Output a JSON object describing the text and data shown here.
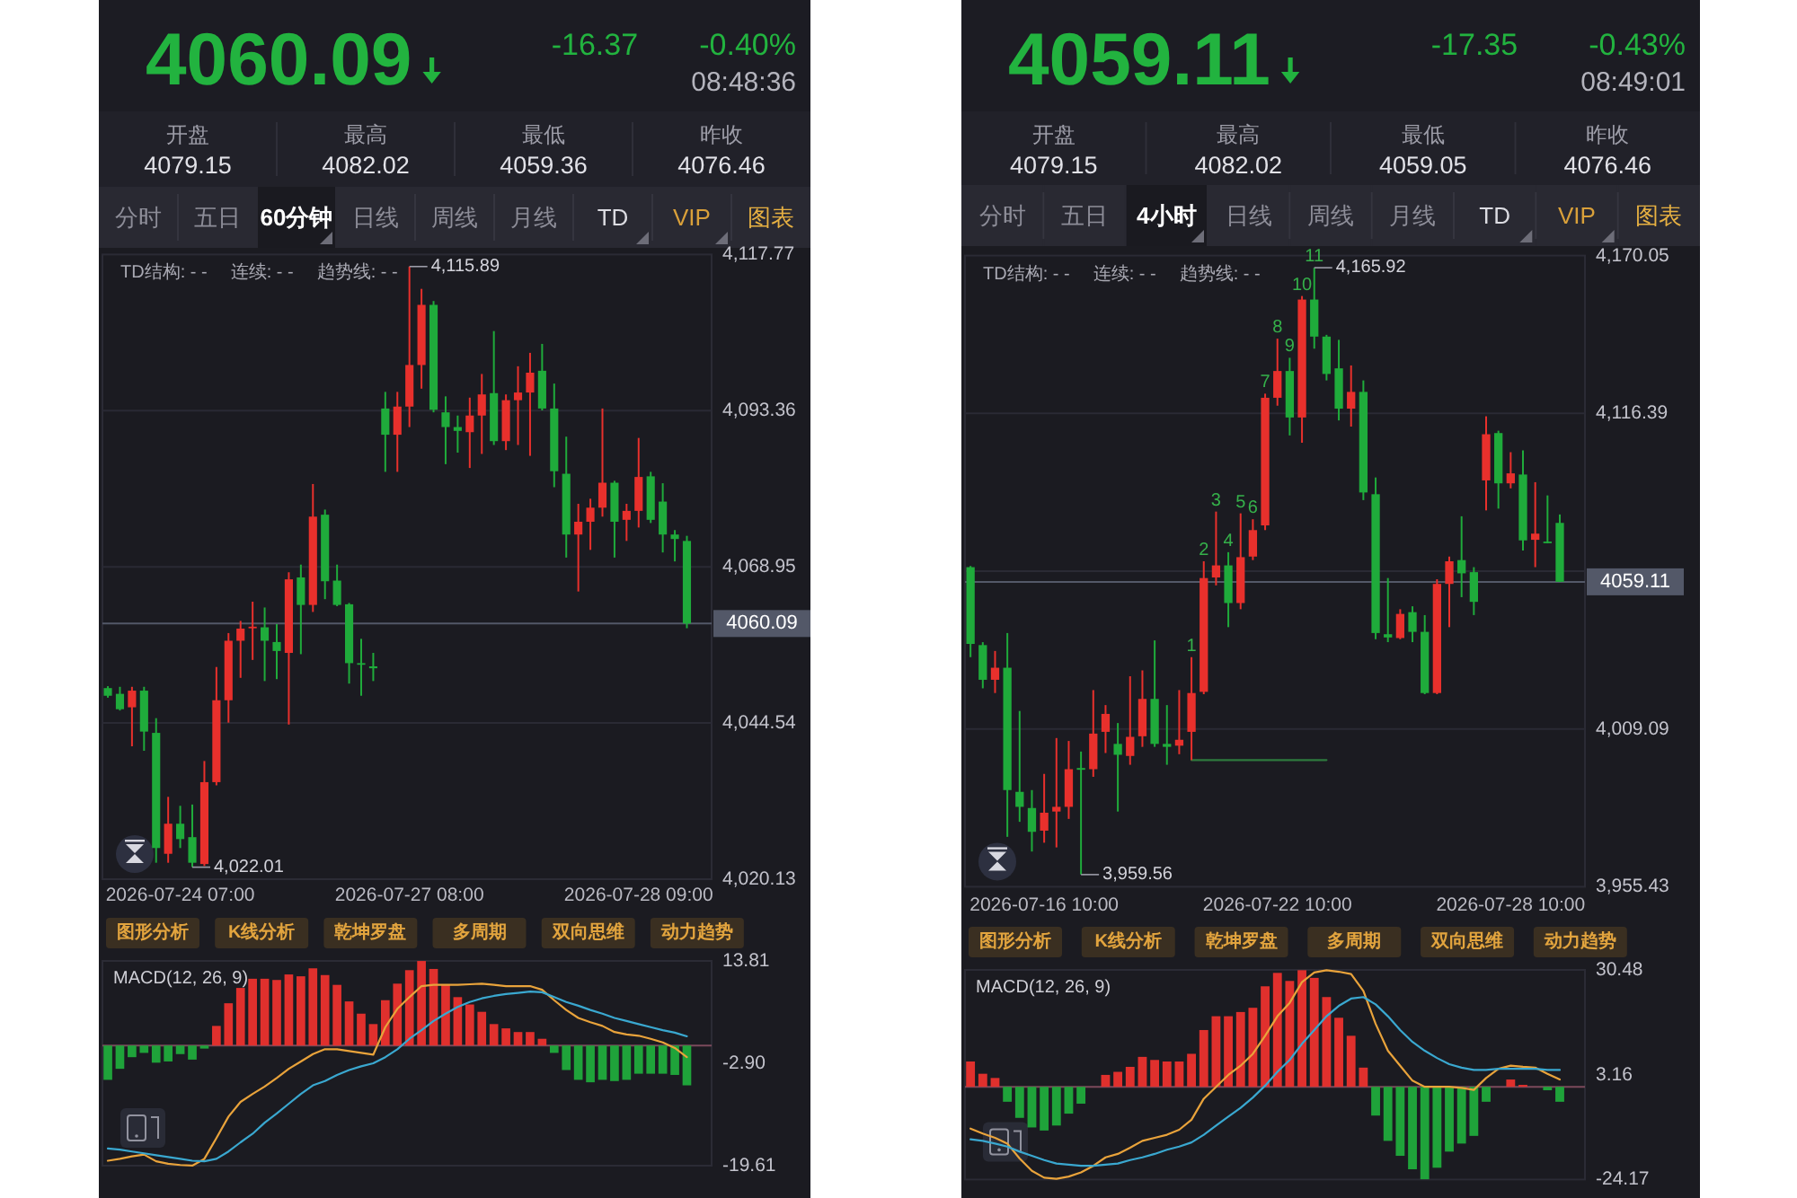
{
  "chart_data": [
    {
      "type": "other",
      "title": "4060.09",
      "color": "#22b33f",
      "annotations": [
        "-16.37",
        "-0.40%",
        "08:48:36",
        "开盘",
        "4079.15",
        "最高",
        "4082.02",
        "最低",
        "4059.36",
        "昨收",
        "4076.46"
      ]
    },
    {
      "type": "other",
      "annotations": [
        "分时",
        "五日",
        "60分钟",
        "日线",
        "周线",
        "月线",
        "TD",
        "VIP",
        "图表"
      ]
    },
    {
      "type": "candlestick",
      "categories": [
        null,
        null,
        null,
        null,
        null,
        null,
        "2026-07-24 07:00",
        null,
        null,
        null,
        null,
        null,
        null,
        null,
        null,
        null,
        null,
        null,
        null,
        null,
        null,
        null,
        null,
        null,
        null,
        "2026-07-27 08:00",
        null,
        null,
        null,
        null,
        null,
        null,
        null,
        null,
        null,
        null,
        null,
        null,
        null,
        null,
        null,
        null,
        null,
        null,
        "2026-07-28 09:00",
        null,
        null,
        null,
        null
      ],
      "ohlc": [
        [
          4050.0,
          4050.3,
          4048.5,
          4048.8
        ],
        [
          4049.1,
          4050.2,
          4046.5,
          4046.7
        ],
        [
          4047.0,
          4050.2,
          4040.9,
          4049.6
        ],
        [
          4049.6,
          4050.2,
          4040.2,
          4043.2
        ],
        [
          4043.0,
          4045.3,
          4022.7,
          4025.0
        ],
        [
          4024.1,
          4033.0,
          4022.7,
          4028.8
        ],
        [
          4028.8,
          4031.6,
          4025.0,
          4026.4
        ],
        [
          4026.7,
          4031.8,
          4022.01,
          4022.7
        ],
        [
          4022.5,
          4038.6,
          4022.2,
          4035.3
        ],
        [
          4035.3,
          4053.3,
          4034.8,
          4048.1
        ],
        [
          4048.1,
          4058.6,
          4044.6,
          4057.4
        ],
        [
          4057.4,
          4060.5,
          4051.6,
          4059.3
        ],
        [
          4059.4,
          4063.5,
          4054.4,
          4059.6
        ],
        [
          4059.5,
          4062.6,
          4051.1,
          4057.4
        ],
        [
          4057.2,
          4060.0,
          4051.4,
          4055.8
        ],
        [
          4055.5,
          4068.1,
          4044.3,
          4067.0
        ],
        [
          4067.3,
          4069.3,
          4055.3,
          4063.0
        ],
        [
          4063.0,
          4081.9,
          4061.9,
          4076.8
        ],
        [
          4077.1,
          4077.9,
          4063.9,
          4066.7
        ],
        [
          4066.8,
          4069.3,
          4062.8,
          4063.0
        ],
        [
          4063.1,
          4063.3,
          4050.7,
          4053.9
        ],
        [
          4053.9,
          4057.7,
          4048.8,
          4053.7
        ],
        [
          4053.4,
          4055.5,
          4051.1,
          4053.1
        ],
        [
          4093.7,
          4096.3,
          4083.8,
          4089.6
        ],
        [
          4089.6,
          4096.3,
          4083.8,
          4094.0
        ],
        [
          4094.0,
          4115.89,
          4090.8,
          4100.5
        ],
        [
          4100.5,
          4112.4,
          4096.8,
          4109.9
        ],
        [
          4109.9,
          4110.5,
          4093.1,
          4093.5
        ],
        [
          4093.1,
          4095.6,
          4085.0,
          4090.8
        ],
        [
          4090.8,
          4092.6,
          4086.8,
          4090.2
        ],
        [
          4090.0,
          4095.4,
          4084.4,
          4092.6
        ],
        [
          4092.6,
          4099.1,
          4086.6,
          4095.9
        ],
        [
          4096.1,
          4105.8,
          4088.0,
          4088.6
        ],
        [
          4088.6,
          4095.9,
          4087.2,
          4095.0
        ],
        [
          4095.0,
          4100.3,
          4088.0,
          4096.2
        ],
        [
          4096.2,
          4102.4,
          4086.3,
          4099.3
        ],
        [
          4099.6,
          4103.8,
          4093.4,
          4093.7
        ],
        [
          4093.7,
          4097.6,
          4081.4,
          4083.9
        ],
        [
          4083.5,
          4089.3,
          4070.4,
          4074.0
        ],
        [
          4074.0,
          4078.8,
          4065.1,
          4076.0
        ],
        [
          4076.0,
          4079.6,
          4071.6,
          4078.2
        ],
        [
          4078.2,
          4093.7,
          4076.8,
          4082.1
        ],
        [
          4082.1,
          4082.4,
          4070.4,
          4076.0
        ],
        [
          4076.3,
          4078.8,
          4073.0,
          4077.7
        ],
        [
          4077.7,
          4089.1,
          4075.1,
          4083.0
        ],
        [
          4083.1,
          4083.8,
          4075.8,
          4076.3
        ],
        [
          4079.15,
          4082.02,
          4071.2,
          4074.0
        ],
        [
          4074.0,
          4074.7,
          4069.8,
          4073.3
        ],
        [
          4073.0,
          4073.8,
          4059.36,
          4060.09
        ]
      ],
      "colors": [
        "#1fab3b",
        "#1fab3b",
        "#e8302c",
        "#1fab3b",
        "#1fab3b",
        "#e8302c",
        "#1fab3b",
        "#1fab3b",
        "#e8302c",
        "#e8302c",
        "#e8302c",
        "#e8302c",
        "#e8302c",
        "#1fab3b",
        "#1fab3b",
        "#e8302c",
        "#1fab3b",
        "#e8302c",
        "#1fab3b",
        "#1fab3b",
        "#1fab3b",
        "#1fab3b",
        "#1fab3b",
        "#1fab3b",
        "#e8302c",
        "#e8302c",
        "#e8302c",
        "#1fab3b",
        "#1fab3b",
        "#1fab3b",
        "#e8302c",
        "#e8302c",
        "#1fab3b",
        "#e8302c",
        "#e8302c",
        "#e8302c",
        "#1fab3b",
        "#1fab3b",
        "#1fab3b",
        "#e8302c",
        "#e8302c",
        "#e8302c",
        "#1fab3b",
        "#e8302c",
        "#e8302c",
        "#1fab3b",
        "#1fab3b",
        "#1fab3b",
        "#1fab3b"
      ],
      "ylim": [
        4020.13,
        4117.77
      ],
      "yticks": [
        {
          "value": 4117.77,
          "label": "4,117.77"
        },
        {
          "value": 4093.36,
          "label": "4,093.36"
        },
        {
          "value": 4068.95,
          "label": "4,068.95"
        },
        {
          "value": 4044.54,
          "label": "4,044.54"
        },
        {
          "value": 4020.13,
          "label": "4,020.13"
        }
      ],
      "grid": "y",
      "annotations": [
        "TD结构: - -",
        "连续: - -",
        "趋势线: - -",
        "4,115.89",
        "4,022.01"
      ],
      "ref_lines": [
        {
          "axis": "y",
          "value": 4060.09,
          "label": "4060.09",
          "color": "#535868"
        }
      ]
    },
    {
      "type": "other",
      "annotations": [
        "图形分析",
        "K线分析",
        "乾坤罗盘",
        "多周期",
        "双向思维",
        "动力趋势"
      ]
    },
    {
      "type": "bar",
      "title": "MACD(12, 26, 9)",
      "categories": [
        null,
        null,
        null,
        null,
        null,
        null,
        null,
        null,
        null,
        null,
        null,
        null,
        null,
        null,
        null,
        null,
        null,
        null,
        null,
        null,
        null,
        null,
        null,
        null,
        null,
        null,
        null,
        null,
        null,
        null,
        null,
        null,
        null,
        null,
        null,
        null,
        null,
        null,
        null,
        null,
        null,
        null,
        null,
        null,
        null,
        null,
        null,
        null,
        null
      ],
      "series": [
        {
          "type": "bar",
          "colors": [
            "#1fa33a",
            "#1fa33a",
            "#1fa33a",
            "#1fa33a",
            "#1fa33a",
            "#1fa33a",
            "#1fa33a",
            "#1fa33a",
            "#1fa33a",
            "#e0302d",
            "#e0302d",
            "#e0302d",
            "#e0302d",
            "#e0302d",
            "#e0302d",
            "#e0302d",
            "#e0302d",
            "#e0302d",
            "#e0302d",
            "#e0302d",
            "#e0302d",
            "#e0302d",
            "#e0302d",
            "#e0302d",
            "#e0302d",
            "#e0302d",
            "#e0302d",
            "#e0302d",
            "#e0302d",
            "#e0302d",
            "#e0302d",
            "#e0302d",
            "#e0302d",
            "#e0302d",
            "#e0302d",
            "#e0302d",
            "#e0302d",
            "#1fa33a",
            "#1fa33a",
            "#1fa33a",
            "#1fa33a",
            "#1fa33a",
            "#1fa33a",
            "#1fa33a",
            "#1fa33a",
            "#1fa33a",
            "#1fa33a",
            "#1fa33a",
            "#1fa33a"
          ],
          "values": [
            -5.6,
            -3.8,
            -1.9,
            -1.2,
            -2.8,
            -2.6,
            -1.4,
            -2.3,
            -0.5,
            3.2,
            6.9,
            9.4,
            10.9,
            10.9,
            10.7,
            11.6,
            11.3,
            12.6,
            11.5,
            9.9,
            7.2,
            5.2,
            3.5,
            7.4,
            10.1,
            12.3,
            13.8,
            12.5,
            9.9,
            7.9,
            6.7,
            5.5,
            3.5,
            2.8,
            2.2,
            2.2,
            1.1,
            -1.2,
            -4.0,
            -5.6,
            -6.0,
            -5.6,
            -5.8,
            -5.6,
            -4.6,
            -4.6,
            -4.6,
            -4.8,
            -6.5
          ]
        },
        {
          "type": "line",
          "color": "#e9a33b",
          "values": [
            -18.8,
            -18.5,
            -18.1,
            -17.8,
            -18.9,
            -19.3,
            -19.5,
            -19.6,
            -18.5,
            -15.1,
            -11.6,
            -9.2,
            -7.9,
            -6.7,
            -5.3,
            -3.8,
            -2.6,
            -1.4,
            -0.6,
            -0.6,
            -0.9,
            -1.2,
            -1.5,
            3.0,
            6.0,
            7.9,
            9.7,
            9.9,
            9.9,
            9.9,
            10.0,
            10.1,
            9.9,
            9.7,
            9.7,
            9.7,
            9.1,
            7.4,
            5.8,
            4.5,
            3.8,
            3.2,
            2.2,
            1.8,
            1.6,
            1.1,
            0.5,
            -0.4,
            -1.9
          ]
        },
        {
          "type": "line",
          "color": "#3aa8d0",
          "values": [
            -16.8,
            -17.0,
            -17.3,
            -17.6,
            -17.9,
            -18.2,
            -18.5,
            -18.8,
            -18.9,
            -18.5,
            -17.3,
            -15.8,
            -14.4,
            -12.6,
            -11.1,
            -9.5,
            -7.9,
            -6.5,
            -5.8,
            -4.8,
            -4.0,
            -3.4,
            -2.9,
            -1.9,
            -0.6,
            1.1,
            2.5,
            4.0,
            5.2,
            6.3,
            7.1,
            7.7,
            8.1,
            8.4,
            8.6,
            8.8,
            8.7,
            7.9,
            7.1,
            6.5,
            5.8,
            5.2,
            4.5,
            4.0,
            3.5,
            3.0,
            2.5,
            2.1,
            1.5
          ]
        }
      ],
      "ylim": [
        -19.61,
        13.81
      ],
      "yticks": [
        13.81,
        {
          "value": -2.9,
          "label": "-2.90"
        },
        -19.61
      ],
      "tick_labels": "y",
      "ref_lines": [
        {
          "axis": "y",
          "value": 0,
          "color": "#7b4a5b"
        }
      ]
    },
    {
      "type": "other",
      "title": "4059.11",
      "color": "#22b33f",
      "annotations": [
        "-17.35",
        "-0.43%",
        "08:49:01",
        "开盘",
        "4079.15",
        "最高",
        "4082.02",
        "最低",
        "4059.05",
        "昨收",
        "4076.46"
      ]
    },
    {
      "type": "other",
      "annotations": [
        "分时",
        "五日",
        "4小时",
        "日线",
        "周线",
        "月线",
        "TD",
        "VIP",
        "图表"
      ]
    },
    {
      "type": "candlestick",
      "categories": [
        null,
        null,
        null,
        null,
        null,
        null,
        "2026-07-16 10:00",
        null,
        null,
        null,
        null,
        null,
        null,
        null,
        null,
        null,
        null,
        null,
        null,
        null,
        null,
        null,
        null,
        null,
        null,
        "2026-07-22 10:00",
        null,
        null,
        null,
        null,
        null,
        null,
        null,
        null,
        null,
        null,
        null,
        null,
        null,
        null,
        null,
        null,
        null,
        null,
        "2026-07-28 10:00",
        null,
        null,
        null,
        null
      ],
      "ohlc": [
        [
          4064.1,
          4064.5,
          4033.5,
          4038.0
        ],
        [
          4037.6,
          4038.6,
          4022.9,
          4025.8
        ],
        [
          4025.8,
          4035.6,
          4021.3,
          4029.9
        ],
        [
          4029.9,
          4041.7,
          3972.4,
          3988.3
        ],
        [
          3987.7,
          4015.2,
          3977.5,
          3982.6
        ],
        [
          3982.2,
          3988.3,
          3967.4,
          3974.1
        ],
        [
          3974.5,
          3993.8,
          3970.4,
          3980.6
        ],
        [
          3981.0,
          4006.0,
          3968.8,
          3982.6
        ],
        [
          3982.6,
          4005.0,
          3978.5,
          3995.4
        ],
        [
          3995.8,
          4001.4,
          3959.56,
          3995.2
        ],
        [
          3995.4,
          4022.3,
          3992.8,
          4007.5
        ],
        [
          4008.1,
          4017.2,
          4000.9,
          4014.2
        ],
        [
          4004.0,
          4011.1,
          3981.0,
          4000.3
        ],
        [
          3999.9,
          4027.0,
          3996.9,
          4006.4
        ],
        [
          4006.6,
          4029.0,
          4003.0,
          4019.3
        ],
        [
          4019.3,
          4039.2,
          4003.0,
          4004.0
        ],
        [
          4004.0,
          4017.2,
          3996.9,
          4003.0
        ],
        [
          4003.4,
          4022.3,
          4000.5,
          4005.4
        ],
        [
          4008.1,
          4033.5,
          3998.5,
          4021.3
        ],
        [
          4021.7,
          4066.1,
          4020.9,
          4060.4
        ],
        [
          4060.6,
          4083.0,
          4057.9,
          4064.7
        ],
        [
          4064.7,
          4069.2,
          4043.7,
          4051.9
        ],
        [
          4051.9,
          4082.4,
          4049.8,
          4067.5
        ],
        [
          4067.7,
          4080.4,
          4066.5,
          4076.7
        ],
        [
          4078.3,
          4123.1,
          4076.7,
          4121.7
        ],
        [
          4121.7,
          4141.8,
          4119.0,
          4130.8
        ],
        [
          4130.8,
          4135.3,
          4108.9,
          4115.0
        ],
        [
          4115.0,
          4156.3,
          4106.4,
          4155.1
        ],
        [
          4155.1,
          4165.92,
          4138.4,
          4142.5
        ],
        [
          4142.5,
          4143.1,
          4127.6,
          4129.8
        ],
        [
          4131.7,
          4141.4,
          4114.0,
          4118.0
        ],
        [
          4118.0,
          4132.7,
          4111.9,
          4123.7
        ],
        [
          4123.7,
          4127.6,
          4086.9,
          4089.5
        ],
        [
          4088.9,
          4094.6,
          4039.6,
          4041.7
        ],
        [
          4041.3,
          4060.4,
          4038.6,
          4040.2
        ],
        [
          4040.0,
          4049.8,
          4039.6,
          4048.2
        ],
        [
          4048.8,
          4050.8,
          4038.6,
          4042.1
        ],
        [
          4042.1,
          4047.8,
          4020.9,
          4021.3
        ],
        [
          4021.3,
          4060.0,
          4020.9,
          4058.4
        ],
        [
          4058.4,
          4067.7,
          4043.7,
          4066.1
        ],
        [
          4066.5,
          4081.4,
          4053.9,
          4062.0
        ],
        [
          4062.4,
          4064.1,
          4047.8,
          4052.3
        ],
        [
          4093.6,
          4115.4,
          4083.4,
          4109.3
        ],
        [
          4109.7,
          4110.5,
          4084.0,
          4092.6
        ],
        [
          4092.6,
          4103.2,
          4090.9,
          4096.0
        ],
        [
          4095.6,
          4103.8,
          4069.8,
          4073.2
        ],
        [
          4073.4,
          4093.0,
          4064.1,
          4075.5
        ],
        [
          4072.8,
          4088.5,
          4072.2,
          4072.4
        ],
        [
          4079.15,
          4082.02,
          4059.05,
          4059.11
        ]
      ],
      "colors": [
        "#1fab3b",
        "#1fab3b",
        "#e8302c",
        "#1fab3b",
        "#1fab3b",
        "#1fab3b",
        "#e8302c",
        "#e8302c",
        "#e8302c",
        "#1fab3b",
        "#e8302c",
        "#e8302c",
        "#1fab3b",
        "#e8302c",
        "#e8302c",
        "#1fab3b",
        "#1fab3b",
        "#e8302c",
        "#e8302c",
        "#e8302c",
        "#e8302c",
        "#1fab3b",
        "#e8302c",
        "#e8302c",
        "#e8302c",
        "#e8302c",
        "#1fab3b",
        "#e8302c",
        "#1fab3b",
        "#1fab3b",
        "#1fab3b",
        "#e8302c",
        "#1fab3b",
        "#1fab3b",
        "#1fab3b",
        "#e8302c",
        "#1fab3b",
        "#1fab3b",
        "#e8302c",
        "#e8302c",
        "#1fab3b",
        "#1fab3b",
        "#e8302c",
        "#1fab3b",
        "#e8302c",
        "#1fab3b",
        "#e8302c",
        "#1fab3b",
        "#1fab3b"
      ],
      "value_labels": [
        null,
        null,
        null,
        null,
        null,
        null,
        null,
        null,
        null,
        null,
        null,
        null,
        null,
        null,
        null,
        null,
        null,
        null,
        "1",
        "2",
        "3",
        "4",
        "5",
        "6",
        "7",
        "8",
        "9",
        "10",
        "11",
        null,
        null,
        null,
        null,
        null,
        null,
        null,
        null,
        null,
        null,
        null,
        null,
        null,
        null,
        null,
        null,
        null,
        null,
        null,
        null
      ],
      "series": [
        {
          "type": "line",
          "color": "#2e7a3e",
          "values": [
            null,
            null,
            null,
            null,
            null,
            null,
            null,
            null,
            null,
            null,
            null,
            null,
            null,
            null,
            null,
            null,
            null,
            null,
            3998.5,
            3998.5,
            3998.5,
            3998.5,
            3998.5,
            3998.5,
            3998.5,
            3998.5,
            3998.5,
            3998.5,
            3998.5,
            3998.5,
            null,
            null,
            null,
            null,
            null,
            null,
            null,
            null,
            null,
            null,
            null,
            null,
            null,
            null,
            null,
            null,
            null,
            null,
            null
          ]
        }
      ],
      "ylim": [
        3955.43,
        4170.05
      ],
      "yticks": [
        {
          "value": 4170.05,
          "label": "4,170.05"
        },
        {
          "value": 4116.39,
          "label": "4,116.39"
        },
        {
          "value": 4062.74,
          "label": null
        },
        {
          "value": 4009.09,
          "label": "4,009.09"
        },
        {
          "value": 3955.43,
          "label": "3,955.43"
        }
      ],
      "grid": "y",
      "annotations": [
        "TD结构: - -",
        "连续: - -",
        "趋势线: - -",
        "4,165.92",
        "3,959.56"
      ],
      "ref_lines": [
        {
          "axis": "y",
          "value": 4059.11,
          "label": "4059.11",
          "color": "#535868"
        }
      ]
    },
    {
      "type": "other",
      "annotations": [
        "图形分析",
        "K线分析",
        "乾坤罗盘",
        "多周期",
        "双向思维",
        "动力趋势"
      ]
    },
    {
      "type": "bar",
      "title": "MACD(12, 26, 9)",
      "categories": [
        null,
        null,
        null,
        null,
        null,
        null,
        null,
        null,
        null,
        null,
        null,
        null,
        null,
        null,
        null,
        null,
        null,
        null,
        null,
        null,
        null,
        null,
        null,
        null,
        null,
        null,
        null,
        null,
        null,
        null,
        null,
        null,
        null,
        null,
        null,
        null,
        null,
        null,
        null,
        null,
        null,
        null,
        null,
        null,
        null,
        null,
        null,
        null,
        null
      ],
      "series": [
        {
          "type": "bar",
          "colors": [
            "#e0302d",
            "#e0302d",
            "#e0302d",
            "#1fa33a",
            "#1fa33a",
            "#1fa33a",
            "#1fa33a",
            "#1fa33a",
            "#1fa33a",
            "#1fa33a",
            null,
            "#e0302d",
            "#e0302d",
            "#e0302d",
            "#e0302d",
            "#e0302d",
            "#e0302d",
            "#e0302d",
            "#e0302d",
            "#e0302d",
            "#e0302d",
            "#e0302d",
            "#e0302d",
            "#e0302d",
            "#e0302d",
            "#e0302d",
            "#e0302d",
            "#e0302d",
            "#e0302d",
            "#e0302d",
            "#e0302d",
            "#e0302d",
            "#e0302d",
            "#1fa33a",
            "#1fa33a",
            "#1fa33a",
            "#1fa33a",
            "#1fa33a",
            "#1fa33a",
            "#1fa33a",
            "#1fa33a",
            "#1fa33a",
            "#1fa33a",
            null,
            "#e0302d",
            "#e0302d",
            null,
            "#1fa33a",
            "#1fa33a"
          ],
          "values": [
            6.6,
            3.4,
            2.3,
            -3.9,
            -8.1,
            -10.6,
            -11.4,
            -10.1,
            -7.0,
            -4.4,
            null,
            3.1,
            3.9,
            5.2,
            7.8,
            7.0,
            6.6,
            6.6,
            8.6,
            14.8,
            18.4,
            18.4,
            19.5,
            20.6,
            26.2,
            29.7,
            27.6,
            30.4,
            28.4,
            23.4,
            18.0,
            13.3,
            5.0,
            -7.5,
            -14.1,
            -18.0,
            -21.5,
            -24.1,
            -21.1,
            -16.9,
            -14.8,
            -12.8,
            -3.9,
            null,
            1.9,
            0.5,
            null,
            -0.9,
            -3.9
          ]
        },
        {
          "type": "line",
          "color": "#e9a33b",
          "values": [
            -10.9,
            -12.2,
            -13.3,
            -14.8,
            -18.7,
            -21.9,
            -23.7,
            -24.0,
            -23.4,
            -22.3,
            -20.6,
            -18.4,
            -17.5,
            -15.9,
            -14.1,
            -13.3,
            -12.5,
            -11.2,
            -8.6,
            -3.1,
            0.0,
            3.1,
            5.5,
            8.6,
            13.3,
            18.4,
            21.9,
            27.3,
            29.8,
            30.4,
            30.0,
            29.4,
            25.0,
            16.4,
            9.4,
            5.5,
            1.6,
            0.0,
            0.0,
            0.0,
            -0.3,
            -0.8,
            2.3,
            4.7,
            5.5,
            5.2,
            5.0,
            3.4,
            1.9
          ]
        },
        {
          "type": "line",
          "color": "#3aa8d0",
          "values": [
            -13.7,
            -14.1,
            -14.8,
            -15.6,
            -16.9,
            -18.0,
            -19.1,
            -20.0,
            -20.3,
            -20.6,
            -20.6,
            -20.3,
            -20.0,
            -19.1,
            -18.4,
            -17.5,
            -16.4,
            -15.6,
            -14.5,
            -12.5,
            -10.1,
            -7.8,
            -5.5,
            -2.8,
            0.3,
            3.9,
            7.0,
            11.2,
            14.8,
            18.4,
            21.1,
            23.0,
            23.4,
            21.5,
            18.4,
            14.8,
            11.7,
            9.4,
            7.5,
            5.9,
            5.0,
            4.4,
            4.4,
            4.7,
            4.7,
            4.7,
            4.7,
            4.4,
            4.4
          ]
        }
      ],
      "ylim": [
        -24.17,
        30.48
      ],
      "yticks": [
        30.48,
        3.16,
        -24.17
      ],
      "tick_labels": "y",
      "ref_lines": [
        {
          "axis": "y",
          "value": 0,
          "color": "#7b4a5b"
        }
      ]
    }
  ]
}
